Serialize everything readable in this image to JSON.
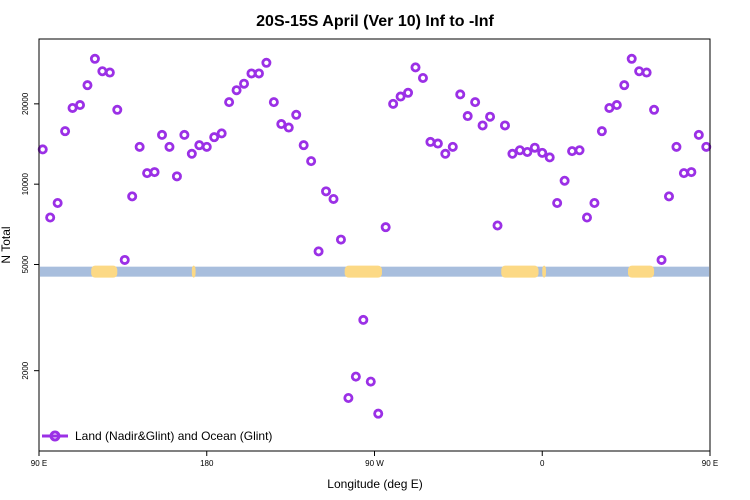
{
  "chart_data": {
    "type": "scatter",
    "title": "20S-15S April (Ver 10)   Inf to -Inf",
    "xlabel": "Longitude (deg E)",
    "ylabel": "N Total",
    "xlim": [
      90,
      450
    ],
    "ylim": [
      1000,
      35000
    ],
    "y_scale": "log",
    "x_ticks": [
      {
        "value": 90,
        "label": "90 E"
      },
      {
        "value": 180,
        "label": "180"
      },
      {
        "value": 270,
        "label": "90 W"
      },
      {
        "value": 360,
        "label": "0"
      },
      {
        "value": 450,
        "label": "90 E"
      },
      {
        "value": 540,
        "label": "180"
      }
    ],
    "y_ticks": [
      {
        "value": 2000,
        "label": "2000"
      },
      {
        "value": 5000,
        "label": "5000"
      },
      {
        "value": 10000,
        "label": "10000"
      },
      {
        "value": 20000,
        "label": "20000"
      }
    ],
    "grid": false,
    "legend": {
      "placement": "bottom-left"
    },
    "series": [
      {
        "name": "Land (Nadir&Glint) and Ocean (Glint)",
        "color": "#9b30e6",
        "marker": "open-circle",
        "points": [
          [
            92,
            13500
          ],
          [
            96,
            7500
          ],
          [
            100,
            8500
          ],
          [
            104,
            15800
          ],
          [
            108,
            19300
          ],
          [
            112,
            19800
          ],
          [
            116,
            23500
          ],
          [
            120,
            29500
          ],
          [
            124,
            26500
          ],
          [
            128,
            26200
          ],
          [
            132,
            19000
          ],
          [
            136,
            5200
          ],
          [
            140,
            9000
          ],
          [
            144,
            13800
          ],
          [
            148,
            11000
          ],
          [
            152,
            11100
          ],
          [
            156,
            15300
          ],
          [
            160,
            13800
          ],
          [
            164,
            10700
          ],
          [
            168,
            15300
          ],
          [
            172,
            13000
          ],
          [
            176,
            14000
          ],
          [
            180,
            13800
          ],
          [
            184,
            15000
          ],
          [
            188,
            15500
          ],
          [
            192,
            20300
          ],
          [
            196,
            22500
          ],
          [
            200,
            23800
          ],
          [
            204,
            26000
          ],
          [
            208,
            26000
          ],
          [
            212,
            28500
          ],
          [
            216,
            20300
          ],
          [
            220,
            16800
          ],
          [
            224,
            16300
          ],
          [
            228,
            18200
          ],
          [
            232,
            14000
          ],
          [
            236,
            12200
          ],
          [
            240,
            5600
          ],
          [
            244,
            9400
          ],
          [
            248,
            8800
          ],
          [
            252,
            6200
          ],
          [
            256,
            1580
          ],
          [
            260,
            1900
          ],
          [
            264,
            3100
          ],
          [
            268,
            1820
          ],
          [
            272,
            1380
          ],
          [
            276,
            6900
          ],
          [
            280,
            20000
          ],
          [
            284,
            21300
          ],
          [
            288,
            22000
          ],
          [
            292,
            27400
          ],
          [
            296,
            25000
          ],
          [
            300,
            14400
          ],
          [
            304,
            14200
          ],
          [
            308,
            13000
          ],
          [
            312,
            13800
          ],
          [
            316,
            21700
          ],
          [
            320,
            18000
          ],
          [
            324,
            20300
          ],
          [
            328,
            16600
          ],
          [
            332,
            17900
          ],
          [
            336,
            7000
          ],
          [
            340,
            16600
          ],
          [
            344,
            13000
          ],
          [
            348,
            13400
          ],
          [
            352,
            13200
          ],
          [
            356,
            13700
          ],
          [
            360,
            13100
          ],
          [
            364,
            12600
          ],
          [
            368,
            8500
          ],
          [
            372,
            10300
          ],
          [
            376,
            13300
          ],
          [
            380,
            13400
          ],
          [
            384,
            7500
          ],
          [
            388,
            8500
          ],
          [
            392,
            15800
          ],
          [
            396,
            19300
          ],
          [
            400,
            19800
          ],
          [
            404,
            23500
          ],
          [
            408,
            29500
          ],
          [
            412,
            26500
          ],
          [
            416,
            26200
          ],
          [
            420,
            19000
          ],
          [
            424,
            5200
          ],
          [
            428,
            9000
          ],
          [
            432,
            13800
          ],
          [
            436,
            11000
          ],
          [
            440,
            11100
          ],
          [
            444,
            15300
          ],
          [
            448,
            13800
          ]
        ]
      }
    ],
    "surface_strip": {
      "y": 4700,
      "ocean_color": "#a8bedd",
      "land_color": "#fcd985",
      "land_spans": [
        [
          118,
          132
        ],
        [
          172,
          174
        ],
        [
          254,
          274
        ],
        [
          338,
          358
        ],
        [
          360,
          362
        ],
        [
          406,
          420
        ]
      ]
    }
  }
}
